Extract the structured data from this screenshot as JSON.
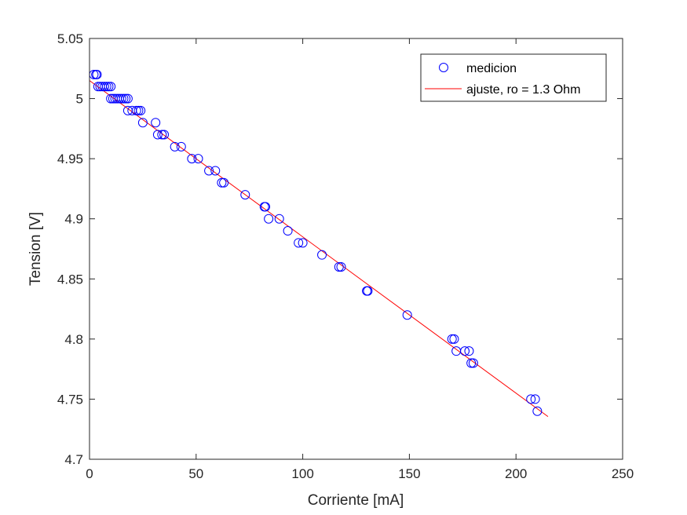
{
  "chart_data": {
    "type": "scatter",
    "xlabel": "Corriente [mA]",
    "ylabel": "Tension [V]",
    "xlim": [
      0,
      250
    ],
    "ylim": [
      4.7,
      5.05
    ],
    "xticks": [
      "0",
      "50",
      "100",
      "150",
      "200",
      "250"
    ],
    "yticks": [
      "4.7",
      "4.75",
      "4.8",
      "4.85",
      "4.9",
      "4.95",
      "5",
      "5.05"
    ],
    "grid": false,
    "legend_position": "top-right",
    "colors": {
      "points": "#0000ff",
      "fit": "#ff0000",
      "axis": "#262626"
    },
    "series": [
      {
        "name": "medicion",
        "kind": "scatter",
        "marker": "circle-open",
        "points": [
          [
            2,
            5.02
          ],
          [
            3,
            5.02
          ],
          [
            3.5,
            5.02
          ],
          [
            4,
            5.01
          ],
          [
            5,
            5.01
          ],
          [
            6,
            5.01
          ],
          [
            7,
            5.01
          ],
          [
            8,
            5.01
          ],
          [
            9,
            5.01
          ],
          [
            10,
            5.01
          ],
          [
            10,
            5.0
          ],
          [
            11,
            5.0
          ],
          [
            12,
            5.0
          ],
          [
            13,
            5.0
          ],
          [
            14,
            5.0
          ],
          [
            15,
            5.0
          ],
          [
            16,
            5.0
          ],
          [
            17,
            5.0
          ],
          [
            18,
            5.0
          ],
          [
            18,
            4.99
          ],
          [
            20,
            4.99
          ],
          [
            22,
            4.99
          ],
          [
            23,
            4.99
          ],
          [
            24,
            4.99
          ],
          [
            25,
            4.98
          ],
          [
            31,
            4.98
          ],
          [
            32,
            4.97
          ],
          [
            34,
            4.97
          ],
          [
            35,
            4.97
          ],
          [
            40,
            4.96
          ],
          [
            43,
            4.96
          ],
          [
            48,
            4.95
          ],
          [
            51,
            4.95
          ],
          [
            56,
            4.94
          ],
          [
            59,
            4.94
          ],
          [
            62,
            4.93
          ],
          [
            63,
            4.93
          ],
          [
            73,
            4.92
          ],
          [
            82,
            4.91
          ],
          [
            82.5,
            4.91
          ],
          [
            84,
            4.9
          ],
          [
            89,
            4.9
          ],
          [
            93,
            4.89
          ],
          [
            98,
            4.88
          ],
          [
            100,
            4.88
          ],
          [
            109,
            4.87
          ],
          [
            117,
            4.86
          ],
          [
            118,
            4.86
          ],
          [
            130,
            4.84
          ],
          [
            130.5,
            4.84
          ],
          [
            149,
            4.82
          ],
          [
            170,
            4.8
          ],
          [
            171,
            4.8
          ],
          [
            172,
            4.79
          ],
          [
            176,
            4.79
          ],
          [
            178,
            4.79
          ],
          [
            179,
            4.78
          ],
          [
            180,
            4.78
          ],
          [
            207,
            4.75
          ],
          [
            209,
            4.75
          ],
          [
            210,
            4.74
          ]
        ]
      },
      {
        "name": "ajuste, ro = 1.3 Ohm",
        "kind": "line",
        "points": [
          [
            0,
            5.015
          ],
          [
            215,
            4.7355
          ]
        ]
      }
    ]
  }
}
